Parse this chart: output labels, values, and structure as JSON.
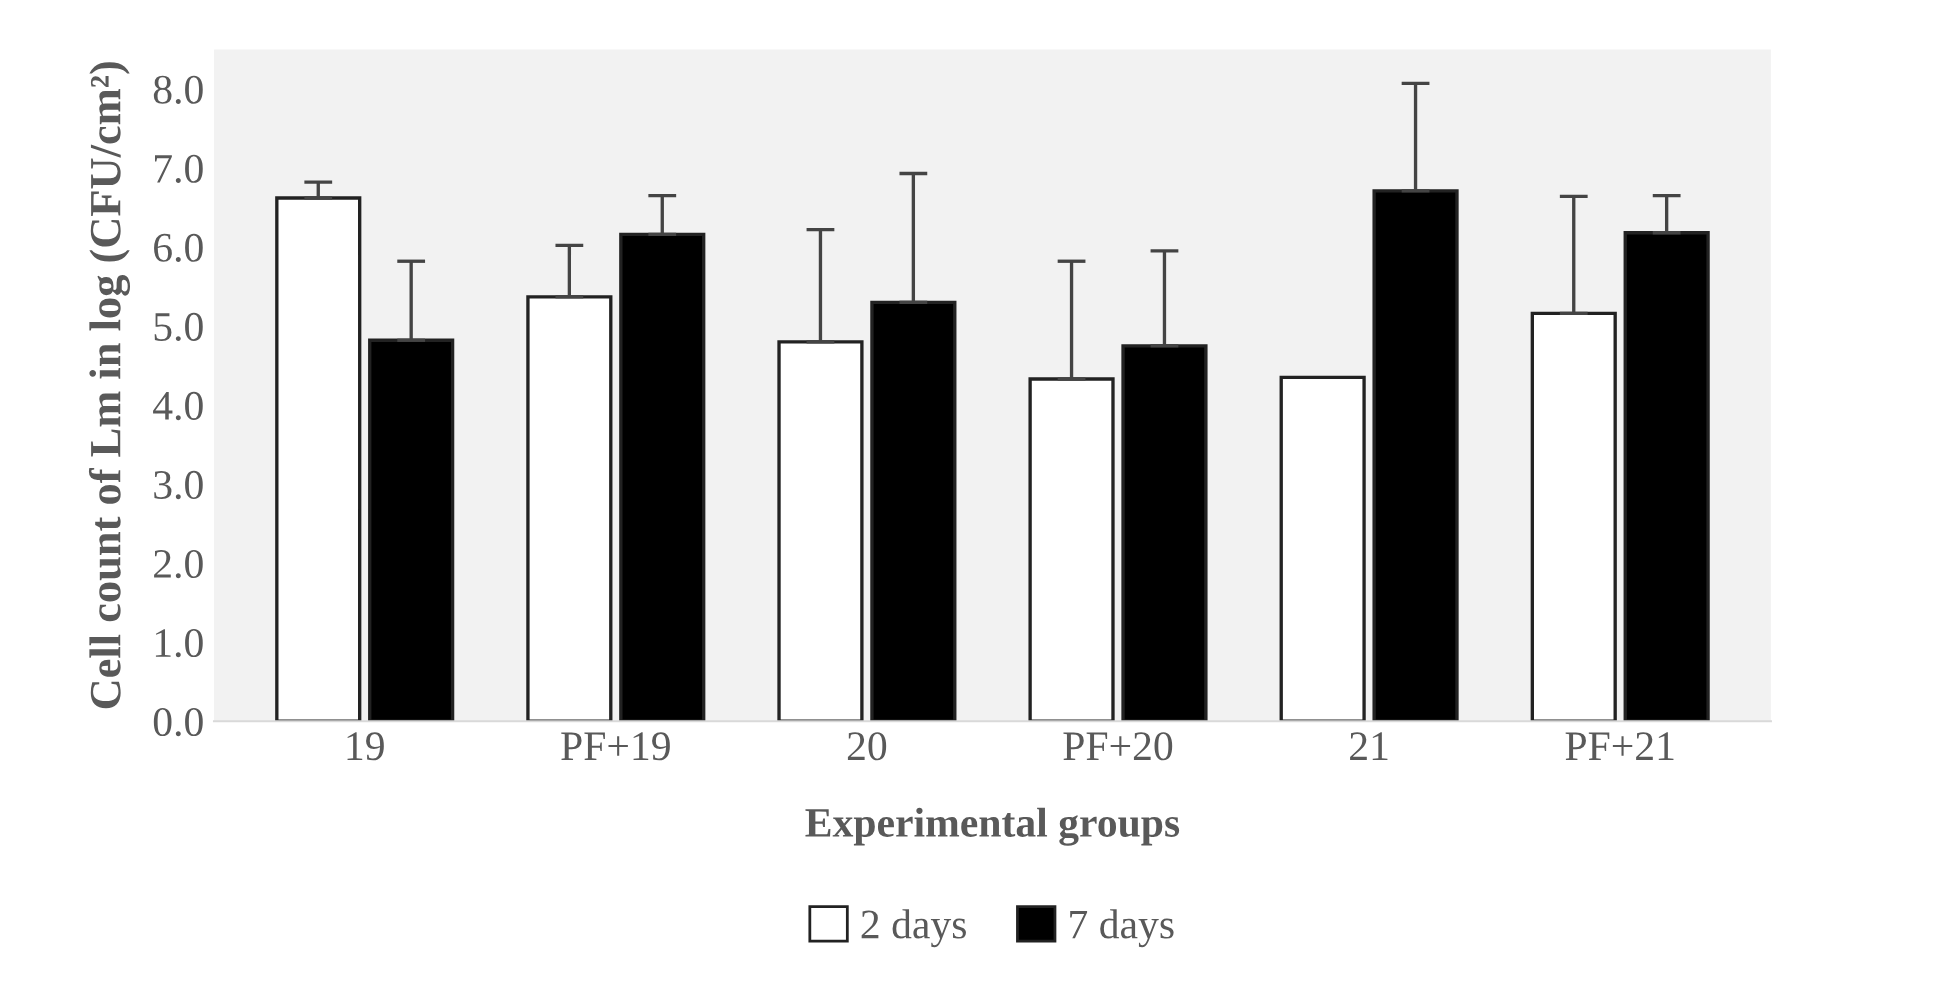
{
  "chart_data": {
    "type": "bar",
    "xlabel": "Experimental groups",
    "ylabel": "Cell count of Lm in log (CFU/cm²)",
    "categories": [
      "19",
      "PF+19",
      "20",
      "PF+20",
      "21",
      "PF+21"
    ],
    "series": [
      {
        "name": "2 days",
        "color": "#ffffff",
        "values": [
          6.62,
          5.37,
          4.8,
          4.33,
          4.35,
          5.16
        ],
        "errors": [
          [
            6.62,
            6.82
          ],
          [
            5.37,
            6.02
          ],
          [
            4.8,
            6.22
          ],
          [
            4.33,
            5.82
          ],
          null,
          [
            5.16,
            6.64
          ]
        ]
      },
      {
        "name": "7 days",
        "color": "#000000",
        "values": [
          4.82,
          6.16,
          5.3,
          4.75,
          6.71,
          6.18
        ],
        "errors": [
          [
            4.82,
            5.82
          ],
          [
            6.16,
            6.65
          ],
          [
            5.3,
            6.93
          ],
          [
            4.75,
            5.95
          ],
          [
            6.71,
            8.07
          ],
          [
            6.18,
            6.65
          ]
        ]
      }
    ],
    "ylim": [
      0,
      8.5
    ],
    "yticks": [
      {
        "value": 0,
        "label": "0.0"
      },
      {
        "value": 1,
        "label": "1.0"
      },
      {
        "value": 2,
        "label": "2.0"
      },
      {
        "value": 3,
        "label": "3.0"
      },
      {
        "value": 4,
        "label": "4.0"
      },
      {
        "value": 5,
        "label": "5.0"
      },
      {
        "value": 6,
        "label": "6.0"
      },
      {
        "value": 7,
        "label": "7.0"
      },
      {
        "value": 8,
        "label": "8.0"
      }
    ],
    "grid": false,
    "legend": "bottom"
  }
}
